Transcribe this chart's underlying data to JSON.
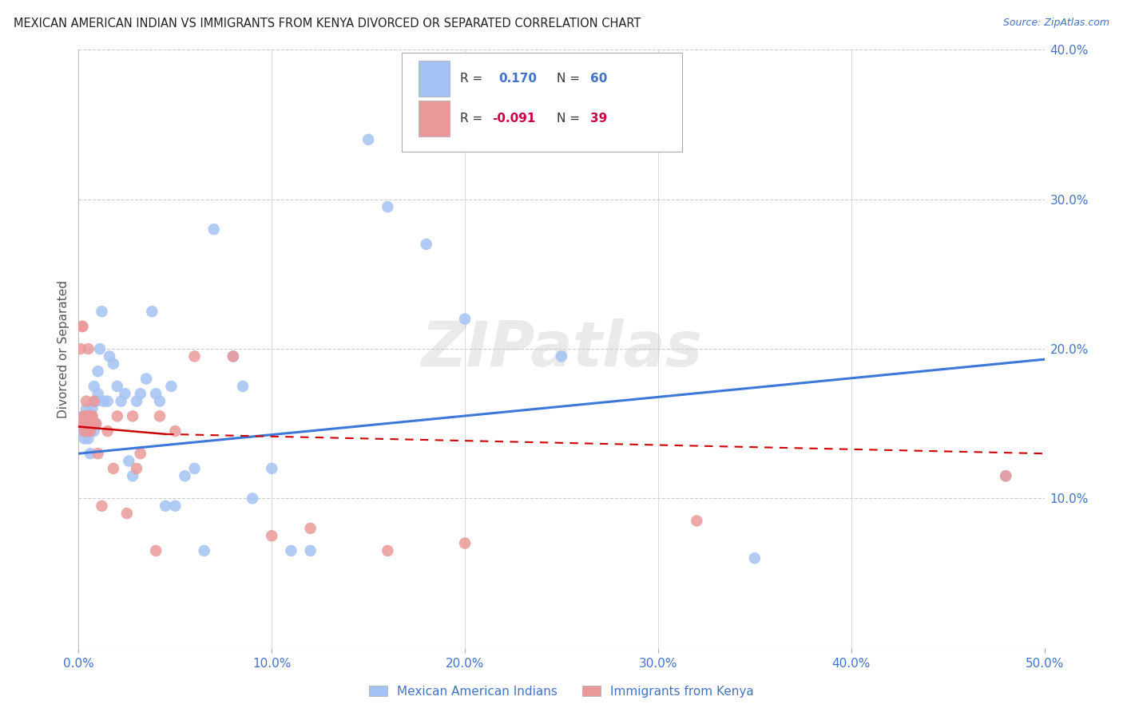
{
  "title": "MEXICAN AMERICAN INDIAN VS IMMIGRANTS FROM KENYA DIVORCED OR SEPARATED CORRELATION CHART",
  "source": "Source: ZipAtlas.com",
  "ylabel": "Divorced or Separated",
  "xlim": [
    0.0,
    0.5
  ],
  "ylim": [
    0.0,
    0.4
  ],
  "xticks": [
    0.0,
    0.1,
    0.2,
    0.3,
    0.4,
    0.5
  ],
  "yticks": [
    0.1,
    0.2,
    0.3,
    0.4
  ],
  "xtick_labels": [
    "0.0%",
    "10.0%",
    "20.0%",
    "30.0%",
    "40.0%",
    "50.0%"
  ],
  "ytick_labels": [
    "10.0%",
    "20.0%",
    "30.0%",
    "40.0%"
  ],
  "r_blue": 0.17,
  "n_blue": 60,
  "r_pink": -0.091,
  "n_pink": 39,
  "blue_color": "#a4c2f4",
  "pink_color": "#ea9999",
  "line_blue": "#3c78d8",
  "line_pink": "#cc0000",
  "watermark": "ZIPatlas",
  "legend_label_blue": "Mexican American Indians",
  "legend_label_pink": "Immigrants from Kenya",
  "blue_x": [
    0.001,
    0.002,
    0.002,
    0.003,
    0.003,
    0.003,
    0.004,
    0.004,
    0.004,
    0.005,
    0.005,
    0.005,
    0.006,
    0.006,
    0.006,
    0.007,
    0.007,
    0.008,
    0.008,
    0.009,
    0.009,
    0.01,
    0.01,
    0.011,
    0.012,
    0.013,
    0.015,
    0.016,
    0.018,
    0.02,
    0.022,
    0.024,
    0.026,
    0.028,
    0.03,
    0.032,
    0.035,
    0.038,
    0.04,
    0.042,
    0.045,
    0.048,
    0.05,
    0.055,
    0.06,
    0.065,
    0.07,
    0.08,
    0.085,
    0.09,
    0.1,
    0.11,
    0.12,
    0.15,
    0.16,
    0.18,
    0.2,
    0.25,
    0.35,
    0.48
  ],
  "blue_y": [
    0.15,
    0.145,
    0.155,
    0.14,
    0.15,
    0.155,
    0.145,
    0.155,
    0.16,
    0.14,
    0.15,
    0.155,
    0.145,
    0.155,
    0.13,
    0.15,
    0.16,
    0.175,
    0.145,
    0.15,
    0.165,
    0.17,
    0.185,
    0.2,
    0.225,
    0.165,
    0.165,
    0.195,
    0.19,
    0.175,
    0.165,
    0.17,
    0.125,
    0.115,
    0.165,
    0.17,
    0.18,
    0.225,
    0.17,
    0.165,
    0.095,
    0.175,
    0.095,
    0.115,
    0.12,
    0.065,
    0.28,
    0.195,
    0.175,
    0.1,
    0.12,
    0.065,
    0.065,
    0.34,
    0.295,
    0.27,
    0.22,
    0.195,
    0.06,
    0.115
  ],
  "pink_x": [
    0.001,
    0.001,
    0.002,
    0.002,
    0.003,
    0.003,
    0.003,
    0.004,
    0.004,
    0.005,
    0.005,
    0.005,
    0.006,
    0.006,
    0.007,
    0.007,
    0.008,
    0.008,
    0.009,
    0.01,
    0.012,
    0.015,
    0.018,
    0.02,
    0.025,
    0.028,
    0.03,
    0.032,
    0.04,
    0.042,
    0.05,
    0.06,
    0.08,
    0.1,
    0.12,
    0.16,
    0.2,
    0.32,
    0.48
  ],
  "pink_y": [
    0.15,
    0.2,
    0.215,
    0.215,
    0.145,
    0.155,
    0.155,
    0.15,
    0.165,
    0.145,
    0.155,
    0.2,
    0.145,
    0.15,
    0.155,
    0.155,
    0.15,
    0.165,
    0.15,
    0.13,
    0.095,
    0.145,
    0.12,
    0.155,
    0.09,
    0.155,
    0.12,
    0.13,
    0.065,
    0.155,
    0.145,
    0.195,
    0.195,
    0.075,
    0.08,
    0.065,
    0.07,
    0.085,
    0.115
  ],
  "blue_line_x0": 0.0,
  "blue_line_y0": 0.13,
  "blue_line_x1": 0.5,
  "blue_line_y1": 0.193,
  "pink_line_solid_x0": 0.0,
  "pink_line_solid_y0": 0.148,
  "pink_line_solid_x1": 0.045,
  "pink_line_solid_y1": 0.143,
  "pink_line_dash_x0": 0.045,
  "pink_line_dash_y0": 0.143,
  "pink_line_dash_x1": 0.5,
  "pink_line_dash_y1": 0.13
}
